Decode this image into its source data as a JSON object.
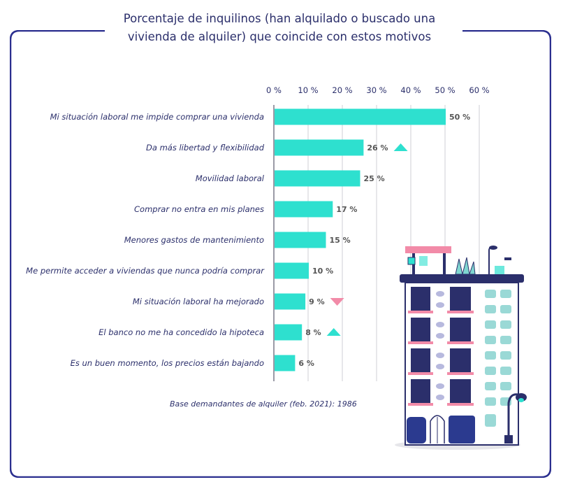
{
  "title_lines": [
    "Porcentaje de inquilinos (han alquilado o buscado una",
    "vivienda de alquiler) que coincide con estos motivos"
  ],
  "footnote": "Base demandantes de alquiler (feb. 2021): 1986",
  "colors": {
    "bar": "#2ee0cf",
    "up": "#2ee0cf",
    "down": "#f28ba8",
    "frame": "#2b2f8f",
    "text": "#2b2f6b"
  },
  "chart_data": {
    "type": "bar",
    "orientation": "horizontal",
    "title": "Porcentaje de inquilinos (han alquilado o buscado una vivienda de alquiler) que coincide con estos motivos",
    "categories": [
      "Mi situación laboral me impide comprar una vivienda",
      "Da más libertad y flexibilidad",
      "Movilidad laboral",
      "Comprar no entra en mis planes",
      "Menores gastos de mantenimiento",
      "Me permite acceder a viviendas que nunca podría comprar",
      "Mi situación laboral ha mejorado",
      "El banco no me ha concedido la hipoteca",
      "Es un buen momento, los precios están bajando"
    ],
    "values": [
      50,
      26,
      25,
      17,
      15,
      10,
      9,
      8,
      6
    ],
    "value_labels": [
      "50 %",
      "26 %",
      "25 %",
      "17 %",
      "15 %",
      "10 %",
      "9 %",
      "8 %",
      "6 %"
    ],
    "trend": [
      "",
      "up",
      "",
      "",
      "",
      "",
      "down",
      "up",
      ""
    ],
    "xlim": [
      0,
      60
    ],
    "ticks": [
      0,
      10,
      20,
      30,
      40,
      50,
      60
    ],
    "tick_labels": [
      "0 %",
      "10 %",
      "20 %",
      "30 %",
      "40 %",
      "50 %",
      "60 %"
    ],
    "axis_position": "top",
    "grid": true,
    "legend": "none"
  }
}
